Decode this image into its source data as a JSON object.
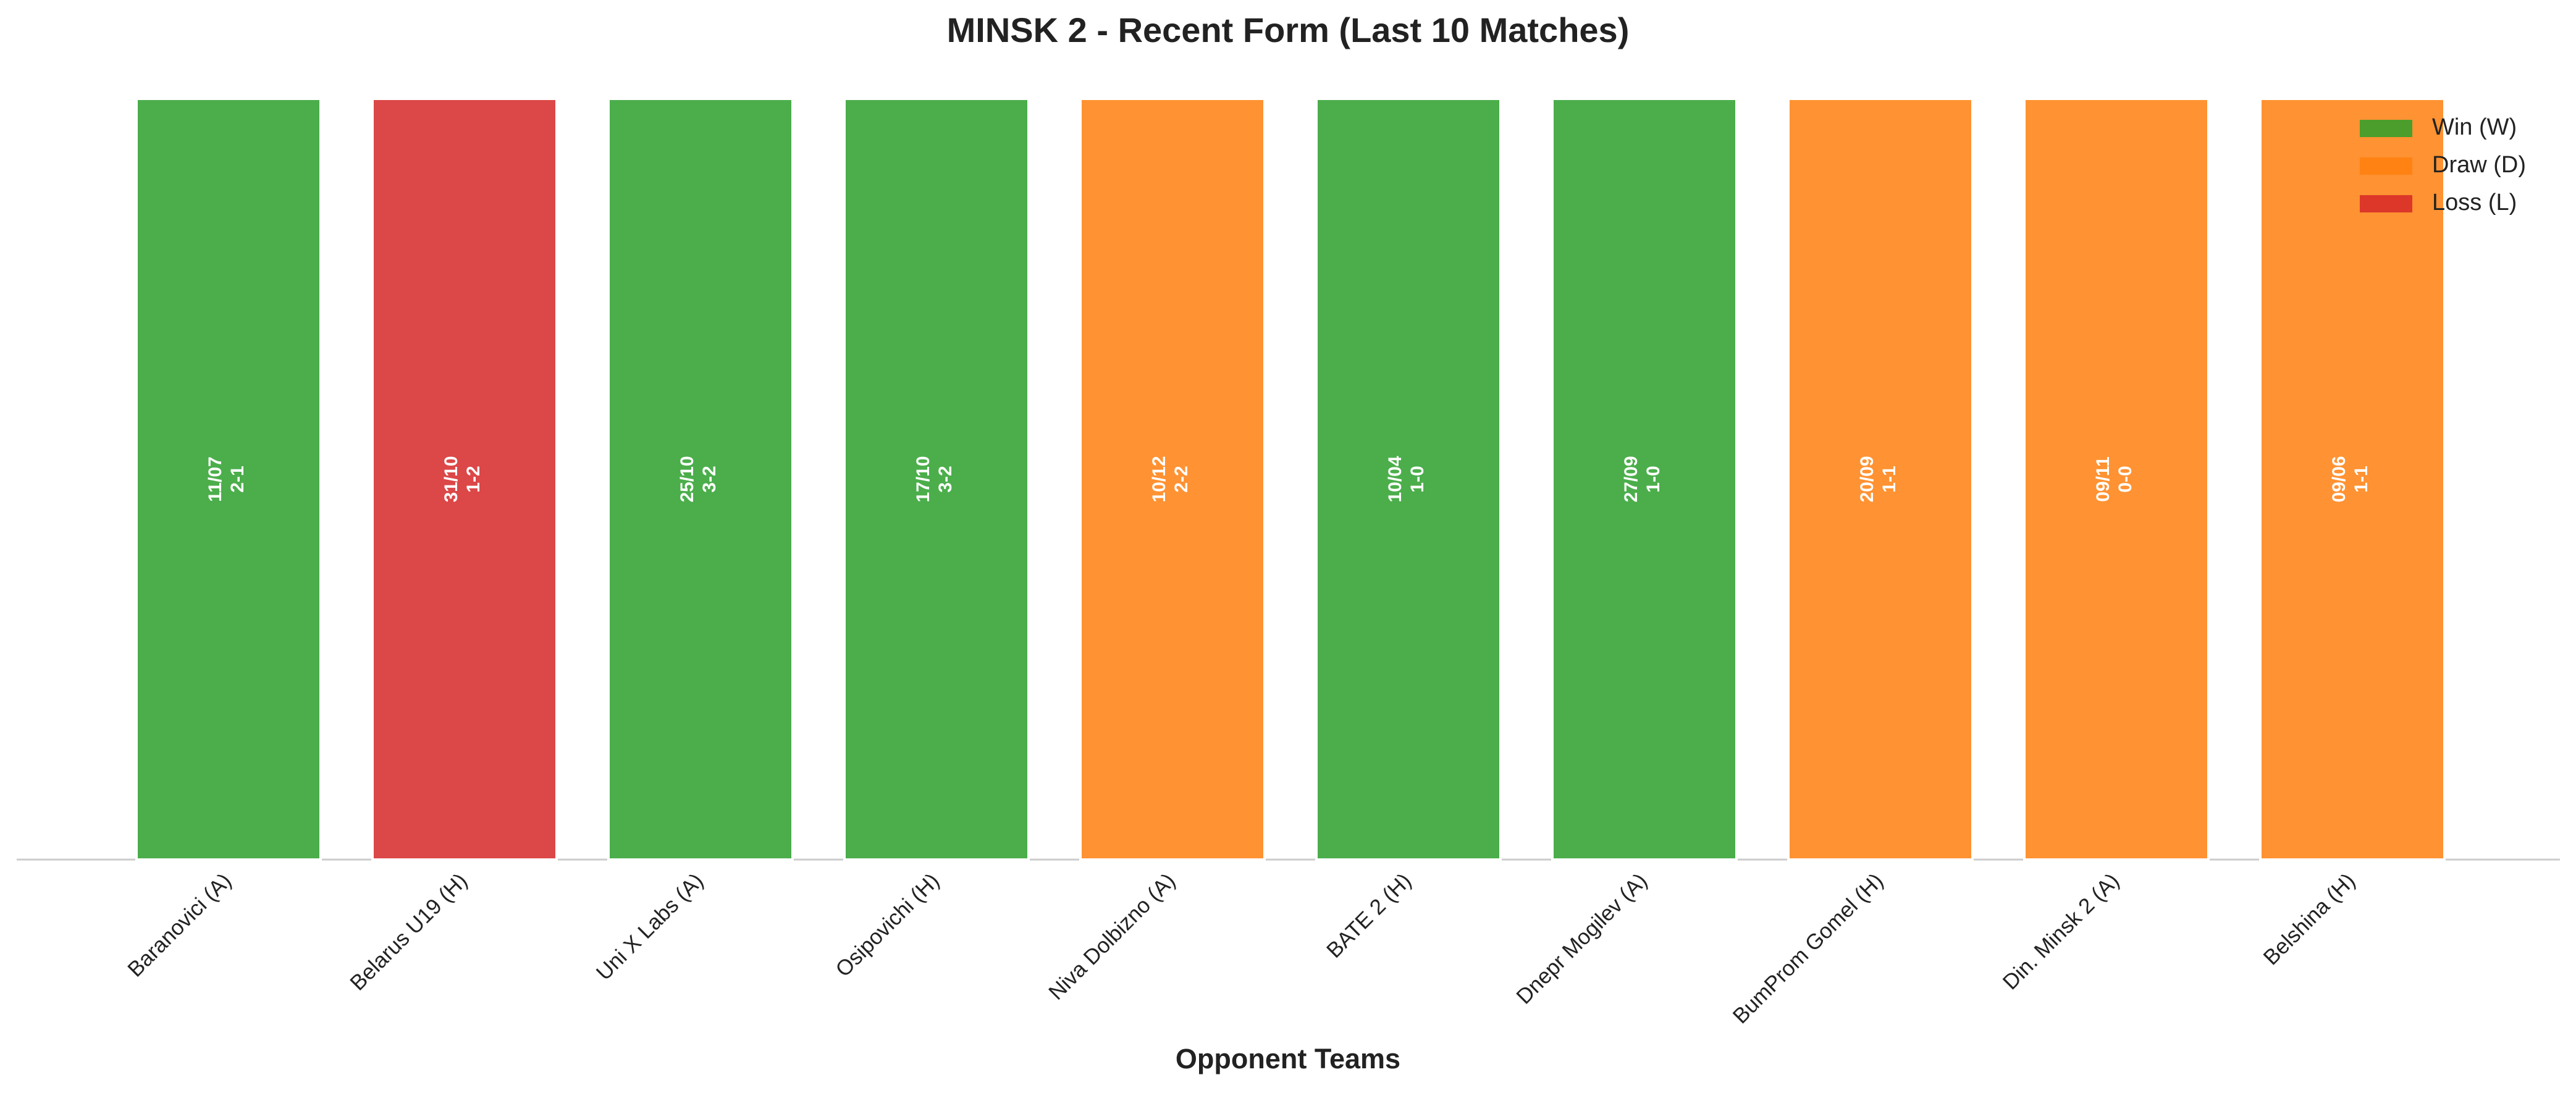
{
  "chart_data": {
    "type": "bar",
    "title": "MINSK 2 - Recent Form (Last 10 Matches)",
    "x_label": "Opponent Teams",
    "categories": [
      "Baranovici (A)",
      "Belarus U19 (H)",
      "Uni X Labs (A)",
      "Osipovichi (H)",
      "Niva Dolbizno (A)",
      "BATE 2 (H)",
      "Dnepr Mogilev (A)",
      "BumProm Gomel (H)",
      "Din. Minsk 2 (A)",
      "Belshina (H)"
    ],
    "values": [
      1,
      1,
      1,
      1,
      1,
      1,
      1,
      1,
      1,
      1
    ],
    "ylim": [
      0,
      1
    ],
    "dates": [
      "11/07",
      "31/10",
      "25/10",
      "17/10",
      "10/12",
      "10/04",
      "27/09",
      "20/09",
      "09/11",
      "09/06"
    ],
    "scores": [
      "2-1",
      "1-2",
      "3-2",
      "3-2",
      "2-2",
      "1-0",
      "1-0",
      "1-1",
      "0-0",
      "1-1"
    ],
    "colors": [
      "#2ca02c",
      "#d62728",
      "#2ca02c",
      "#2ca02c",
      "#ff7f0e",
      "#2ca02c",
      "#2ca02c",
      "#ff7f0e",
      "#ff7f0e",
      "#ff7f0e"
    ],
    "legend": [
      {
        "name": "Win (W)",
        "color": "#2ca02c"
      },
      {
        "name": "Draw (D)",
        "color": "#ff7f0e"
      },
      {
        "name": "Loss (L)",
        "color": "#d62728"
      }
    ],
    "legend_position": "upper right"
  }
}
